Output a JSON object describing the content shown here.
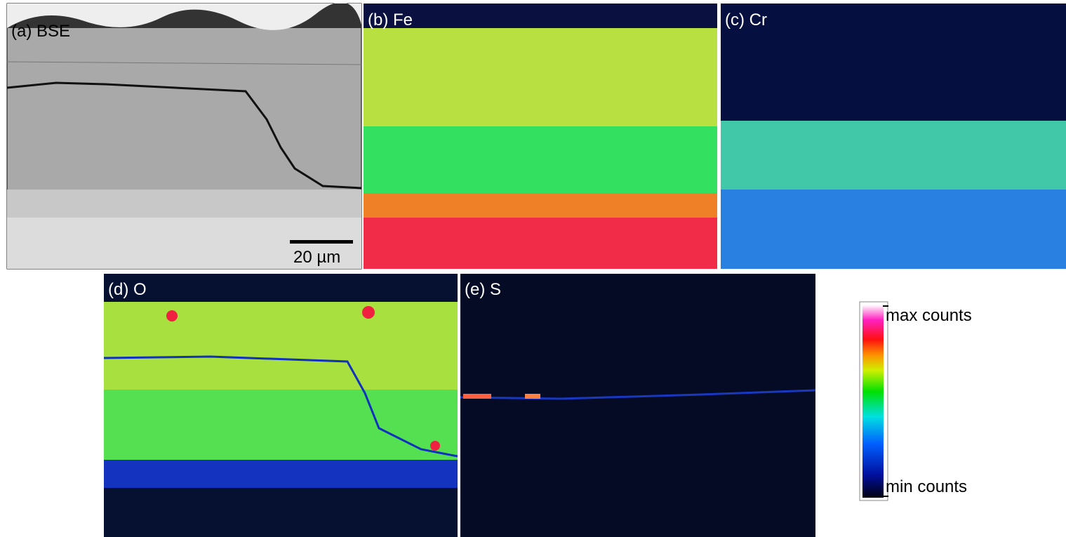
{
  "panels": [
    {
      "label": "(a) BSE"
    },
    {
      "label": "(b) Fe"
    },
    {
      "label": "(c) Cr"
    },
    {
      "label": "(d) O"
    },
    {
      "label": "(e) S"
    }
  ],
  "scale_bar": "20 µm",
  "colorbar": {
    "max_label": "max counts",
    "min_label": "min counts"
  }
}
